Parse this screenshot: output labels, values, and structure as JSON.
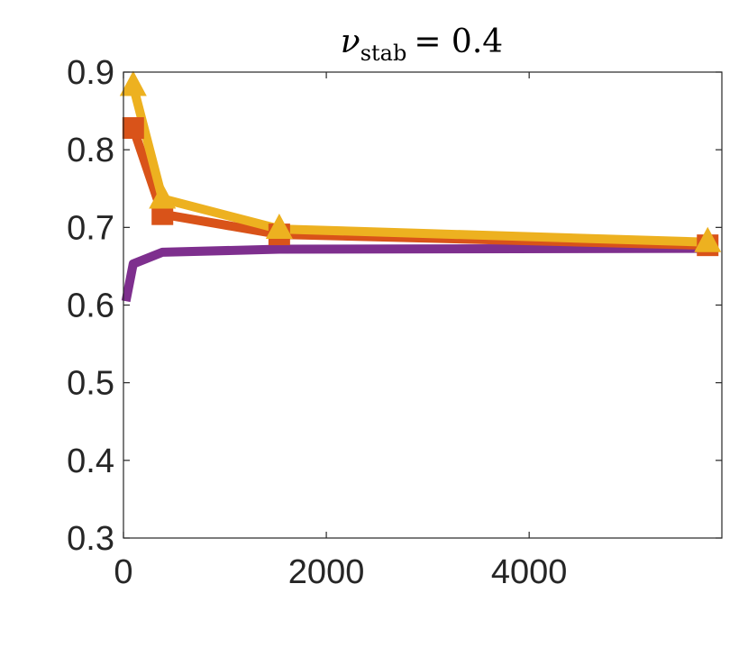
{
  "chart_data": {
    "type": "line",
    "title": {
      "symbol": "ν",
      "subscript": "stab",
      "relation": "= 0.4"
    },
    "xlabel": "",
    "ylabel": "",
    "xlim": [
      0,
      5900
    ],
    "ylim": [
      0.3,
      0.9
    ],
    "xticks": [
      0,
      2000,
      4000
    ],
    "xtick_labels": [
      "0",
      "2000",
      "4000"
    ],
    "yticks": [
      0.3,
      0.4,
      0.5,
      0.6,
      0.7,
      0.8,
      0.9
    ],
    "ytick_labels": [
      "0.3",
      "0.4",
      "0.5",
      "0.6",
      "0.7",
      "0.8",
      "0.9"
    ],
    "grid": false,
    "legend": "none",
    "series": [
      {
        "color": "#7E2F8E",
        "marker": "none",
        "x": [
          24,
          96,
          384,
          1536,
          5760
        ],
        "y": [
          0.605,
          0.653,
          0.668,
          0.672,
          0.673
        ]
      },
      {
        "color": "#D95319",
        "marker": "square",
        "x": [
          96,
          384,
          1536,
          5760
        ],
        "y": [
          0.828,
          0.717,
          0.691,
          0.677
        ]
      },
      {
        "color": "#EDB120",
        "marker": "triangle",
        "x": [
          96,
          384,
          1536,
          5760
        ],
        "y": [
          0.882,
          0.737,
          0.698,
          0.681
        ]
      }
    ]
  }
}
